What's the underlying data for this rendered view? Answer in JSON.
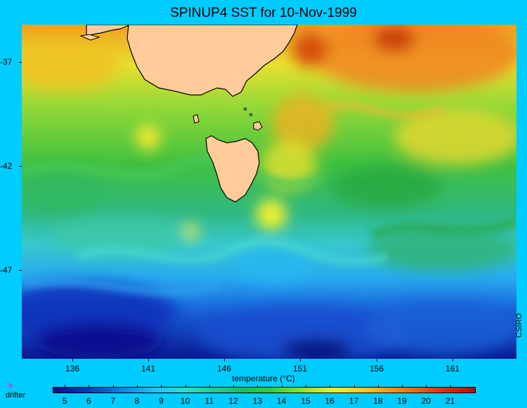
{
  "title": "SPINUP4 SST for 10-Nov-1999",
  "credit": "CSIRO",
  "map": {
    "y_axis_ticks": [
      "-37",
      "-42",
      "-47"
    ],
    "x_axis_ticks": [
      "136",
      "141",
      "146",
      "151",
      "156",
      "161"
    ],
    "land_color": "#ffcc99",
    "coast_color": "#000000",
    "regions_shown": [
      "mainland Australia (south-east)",
      "Tasmania"
    ]
  },
  "colorbar": {
    "label": "temperature (°C)",
    "ticks": [
      "5",
      "6",
      "7",
      "8",
      "9",
      "10",
      "11",
      "12",
      "13",
      "14",
      "15",
      "16",
      "17",
      "18",
      "19",
      "20",
      "21"
    ],
    "range": [
      4.5,
      22
    ],
    "colors": [
      "#0a0a8a",
      "#1030c8",
      "#1a78e8",
      "#30b8ff",
      "#38d8d0",
      "#30c890",
      "#28b858",
      "#40c840",
      "#a8e030",
      "#f0f030",
      "#ffc020",
      "#f08010",
      "#d84010",
      "#b01008"
    ]
  },
  "legend": {
    "drifter_symbol": ">",
    "drifter_label": "drifter",
    "drifter_color": "#ff00ff"
  }
}
